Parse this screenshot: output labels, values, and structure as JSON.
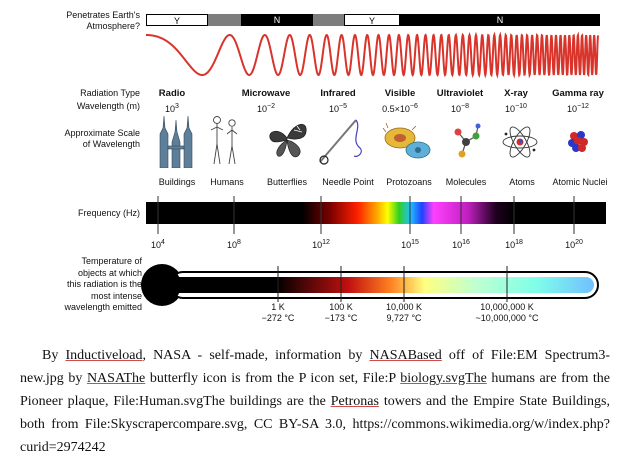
{
  "atmosphere": {
    "label": "Penetrates Earth's\nAtmosphere?",
    "segments": [
      "Y",
      "N",
      "Y",
      "N"
    ]
  },
  "row_labels": {
    "radiation_type": "Radiation Type",
    "wavelength": "Wavelength (m)",
    "scale": "Approximate Scale\nof Wavelength",
    "frequency": "Frequency (Hz)",
    "temperature": "Temperature of\nobjects at which\nthis radiation is the\nmost intense\nwavelength emitted"
  },
  "bands": [
    {
      "name": "Radio",
      "wavelength": "10",
      "exp": "3"
    },
    {
      "name": "Microwave",
      "wavelength": "10",
      "exp": "−2"
    },
    {
      "name": "Infrared",
      "wavelength": "10",
      "exp": "−5"
    },
    {
      "name": "Visible",
      "wavelength": "0.5×10",
      "exp": "−6"
    },
    {
      "name": "Ultraviolet",
      "wavelength": "10",
      "exp": "−8"
    },
    {
      "name": "X-ray",
      "wavelength": "10",
      "exp": "−10"
    },
    {
      "name": "Gamma ray",
      "wavelength": "10",
      "exp": "−12"
    }
  ],
  "scale_objects": [
    "Buildings",
    "Humans",
    "Butterflies",
    "Needle Point",
    "Protozoans",
    "Molecules",
    "Atoms",
    "Atomic Nuclei"
  ],
  "frequency_ticks": [
    {
      "base": "10",
      "exp": "4"
    },
    {
      "base": "10",
      "exp": "8"
    },
    {
      "base": "10",
      "exp": "12"
    },
    {
      "base": "10",
      "exp": "15"
    },
    {
      "base": "10",
      "exp": "16"
    },
    {
      "base": "10",
      "exp": "18"
    },
    {
      "base": "10",
      "exp": "20"
    }
  ],
  "temperature_ticks": [
    {
      "k": "1 K",
      "c": "−272 °C"
    },
    {
      "k": "100 K",
      "c": "−173 °C"
    },
    {
      "k": "10,000 K",
      "c": "9,727 °C"
    },
    {
      "k": "10,000,000 K",
      "c": "~10,000,000 °C"
    }
  ],
  "caption": {
    "p1": "By ",
    "link1": "Inductiveload",
    "p2": ", NASA - self-made, information by ",
    "link2": "NASABased",
    "p3": " off of File:EM Spectrum3-new.jpg by ",
    "link3": "NASAThe",
    "p4": " butterfly icon is from the P icon set, File:P ",
    "link4": "biology.svgThe",
    "p5": " humans are from the Pioneer plaque, File:Human.svgThe buildings are the ",
    "link5": "Petronas",
    "p6": " towers and the Empire State Buildings, both from File:Skyscrapercompare.svg, CC BY-SA 3.0, https://commons.wikimedia.org/w/index.php?curid=2974242"
  },
  "colors": {
    "wave": "#d9342b",
    "bar_black": "#000000"
  }
}
